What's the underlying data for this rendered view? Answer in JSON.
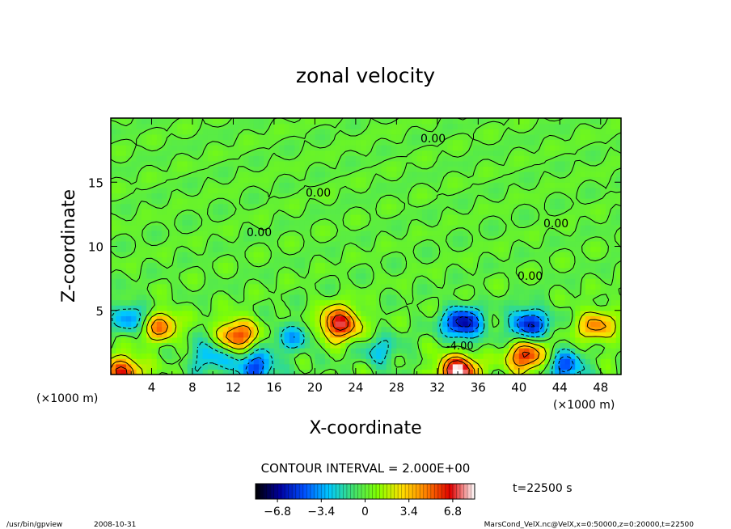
{
  "chart_data": {
    "type": "heatmap",
    "title": "zonal velocity",
    "xlabel": "X-coordinate",
    "ylabel": "Z-coordinate",
    "x_unit": "(×1000 m)",
    "z_unit": "(×1000 m)",
    "xlim": [
      0,
      50
    ],
    "zlim": [
      0,
      20
    ],
    "x_ticks": [
      "4",
      "8",
      "12",
      "16",
      "20",
      "24",
      "28",
      "32",
      "36",
      "40",
      "44",
      "48"
    ],
    "z_ticks": [
      "5",
      "10",
      "15"
    ],
    "contour_interval_text": "CONTOUR INTERVAL = 2.000E+00",
    "contour_label": "0.00",
    "contour_label_neg": "-4.00",
    "colorbar": {
      "ticks": [
        "-6.8",
        "-3.4",
        "0",
        "3.4",
        "6.8"
      ],
      "range": [
        -8.5,
        8.5
      ],
      "colors": [
        "#000000",
        "#0000a0",
        "#0050ff",
        "#00c8ff",
        "#40e070",
        "#80ff00",
        "#ffe000",
        "#ff8000",
        "#e00000",
        "#ffffff"
      ]
    },
    "time_text": "t=22500 s",
    "features": [
      {
        "x": 4.7,
        "z": 3.8,
        "v": 5.0
      },
      {
        "x": 12.4,
        "z": 3.1,
        "v": 6.0
      },
      {
        "x": 22.4,
        "z": 4.0,
        "v": 7.5
      },
      {
        "x": 34.0,
        "z": 0.3,
        "v": 8.5
      },
      {
        "x": 40.8,
        "z": 1.4,
        "v": 6.5
      },
      {
        "x": 47.6,
        "z": 3.8,
        "v": 4.5
      },
      {
        "x": 1.2,
        "z": 0.3,
        "v": 6.0
      },
      {
        "x": 2.0,
        "z": 4.4,
        "v": -4.0
      },
      {
        "x": 9.7,
        "z": 1.5,
        "v": -3.5
      },
      {
        "x": 14.2,
        "z": 0.6,
        "v": -5.5
      },
      {
        "x": 17.8,
        "z": 2.9,
        "v": -3.0
      },
      {
        "x": 26.5,
        "z": 1.8,
        "v": -2.5
      },
      {
        "x": 34.5,
        "z": 4.0,
        "v": -7.0
      },
      {
        "x": 41.0,
        "z": 4.0,
        "v": -6.0
      },
      {
        "x": 44.5,
        "z": 0.6,
        "v": -5.0
      }
    ]
  },
  "footer": {
    "program": "/usr/bin/gpview",
    "date": "2008-10-31",
    "source": "MarsCond_VelX.nc@VelX,x=0:50000,z=0:20000,t=22500"
  }
}
